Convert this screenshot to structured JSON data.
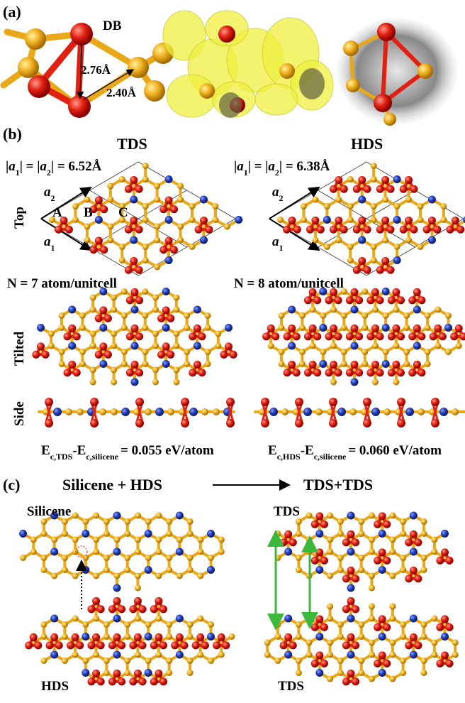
{
  "panel_a": {
    "label": "(a)",
    "db": "DB",
    "d1": "2.76Å",
    "d2": "2.40Å"
  },
  "panel_b": {
    "label": "(b)",
    "tds": "TDS",
    "hds": "HDS",
    "tds_lattice": [
      {
        "text": "|"
      },
      {
        "text": "a",
        "italic": true
      },
      {
        "text": "1",
        "sub": true
      },
      {
        "text": "| = |"
      },
      {
        "text": "a",
        "italic": true
      },
      {
        "text": "2",
        "sub": true
      },
      {
        "text": "| = 6.52Å"
      }
    ],
    "hds_lattice": [
      {
        "text": "|"
      },
      {
        "text": "a",
        "italic": true
      },
      {
        "text": "1",
        "sub": true
      },
      {
        "text": "| = |"
      },
      {
        "text": "a",
        "italic": true
      },
      {
        "text": "2",
        "sub": true
      },
      {
        "text": "| = 6.38Å"
      }
    ],
    "tds_a2": [
      {
        "text": "a",
        "italic": true
      },
      {
        "text": "2",
        "sub": true
      }
    ],
    "tds_a1": [
      {
        "text": "a",
        "italic": true
      },
      {
        "text": "1",
        "sub": true
      }
    ],
    "hds_a2": [
      {
        "text": "a",
        "italic": true
      },
      {
        "text": "2",
        "sub": true
      }
    ],
    "hds_a1": [
      {
        "text": "a",
        "italic": true
      },
      {
        "text": "1",
        "sub": true
      }
    ],
    "sites": [
      "A",
      "B",
      "C"
    ],
    "rows": [
      "Top",
      "Tilted",
      "Side"
    ],
    "tds_n": "N = 7 atom/unitcell",
    "hds_n": "N = 8 atom/unitcell",
    "tds_energy": [
      {
        "text": "E"
      },
      {
        "text": "c,TDS",
        "sub": true
      },
      {
        "text": "-E"
      },
      {
        "text": "c,silicene",
        "sub": true
      },
      {
        "text": "= 0.055 eV/atom"
      }
    ],
    "hds_energy": [
      {
        "text": "E"
      },
      {
        "text": "c,HDS",
        "sub": true
      },
      {
        "text": "-E"
      },
      {
        "text": "c,silicene",
        "sub": true
      },
      {
        "text": "= 0.060 eV/atom"
      }
    ]
  },
  "panel_c": {
    "label": "(c)",
    "left_title": "Silicene + HDS",
    "right_title": "TDS+TDS",
    "labels": [
      "Silicene",
      "TDS",
      "HDS",
      "TDS"
    ]
  }
}
